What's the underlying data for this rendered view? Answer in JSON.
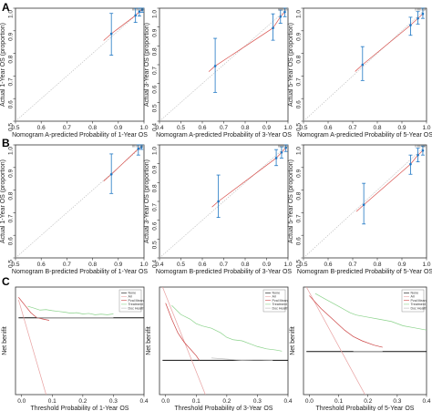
{
  "panel_labels": [
    "A",
    "B",
    "C"
  ],
  "chart_data": [
    {
      "panel": "A",
      "type": "scatter",
      "subtype": "calibration",
      "xlabel": "Nomogram A-predicted Probability of 1-Year OS",
      "ylabel": "Actual 1-Year OS (proportion)",
      "xlim": [
        0.5,
        1.0
      ],
      "ylim": [
        0.5,
        1.0
      ],
      "xticks": [
        "0.5",
        "0.6",
        "0.7",
        "0.8",
        "0.9",
        "1.0"
      ],
      "yticks": [
        "0.5",
        "0.6",
        "0.7",
        "0.8",
        "0.9",
        "1.0"
      ],
      "points": [
        {
          "x": 0.873,
          "y": 0.887,
          "lo": 0.792,
          "hi": 0.977
        },
        {
          "x": 0.967,
          "y": 0.968,
          "lo": 0.937,
          "hi": 0.999
        },
        {
          "x": 0.982,
          "y": 0.985,
          "lo": 0.965,
          "hi": 1.0
        },
        {
          "x": 0.993,
          "y": 0.993,
          "lo": 0.982,
          "hi": 1.0
        }
      ],
      "colors": {
        "points": "#1f77c4",
        "fit": "#d9534f",
        "ideal": "#bbbbbb"
      }
    },
    {
      "panel": "A",
      "type": "scatter",
      "subtype": "calibration",
      "xlabel": "Nomogram A-predicted Probability of 3-Year OS",
      "ylabel": "Actual 3-Year OS (proportion)",
      "xlim": [
        0.4,
        1.0
      ],
      "ylim": [
        0.4,
        1.0
      ],
      "xticks": [
        "0.4",
        "0.5",
        "0.6",
        "0.7",
        "0.8",
        "0.9",
        "1.0"
      ],
      "yticks": [
        "0.4",
        "0.5",
        "0.6",
        "0.7",
        "0.8",
        "0.9",
        "1.0"
      ],
      "points": [
        {
          "x": 0.66,
          "y": 0.693,
          "lo": 0.553,
          "hi": 0.84
        },
        {
          "x": 0.93,
          "y": 0.895,
          "lo": 0.83,
          "hi": 0.97
        },
        {
          "x": 0.965,
          "y": 0.955,
          "lo": 0.92,
          "hi": 0.99
        },
        {
          "x": 0.985,
          "y": 0.98,
          "lo": 0.955,
          "hi": 1.0
        }
      ],
      "colors": {
        "points": "#1f77c4",
        "fit": "#d9534f",
        "ideal": "#bbbbbb"
      }
    },
    {
      "panel": "A",
      "type": "scatter",
      "subtype": "calibration",
      "xlabel": "Nomogram A-predicted Probability of 5-Year OS",
      "ylabel": "Actual 5-Year OS (proportion)",
      "xlim": [
        0.5,
        1.0
      ],
      "ylim": [
        0.5,
        1.0
      ],
      "xticks": [
        "0.5",
        "0.6",
        "0.7",
        "0.8",
        "0.9",
        "1.0"
      ],
      "yticks": [
        "0.5",
        "0.6",
        "0.7",
        "0.8",
        "0.9",
        "1.0"
      ],
      "points": [
        {
          "x": 0.74,
          "y": 0.75,
          "lo": 0.68,
          "hi": 0.83
        },
        {
          "x": 0.935,
          "y": 0.925,
          "lo": 0.88,
          "hi": 0.96
        },
        {
          "x": 0.965,
          "y": 0.955,
          "lo": 0.93,
          "hi": 0.985
        },
        {
          "x": 0.985,
          "y": 0.975,
          "lo": 0.955,
          "hi": 1.0
        }
      ],
      "colors": {
        "points": "#1f77c4",
        "fit": "#d9534f",
        "ideal": "#bbbbbb"
      }
    },
    {
      "panel": "B",
      "type": "scatter",
      "subtype": "calibration",
      "xlabel": "Nomogram B-predicted Probability of 1-Year OS",
      "ylabel": "Actual 1-Year OS (proportion)",
      "xlim": [
        0.5,
        1.0
      ],
      "ylim": [
        0.5,
        1.0
      ],
      "xticks": [
        "0.5",
        "0.6",
        "0.7",
        "0.8",
        "0.9",
        "1.0"
      ],
      "yticks": [
        "0.5",
        "0.6",
        "0.7",
        "0.8",
        "0.9",
        "1.0"
      ],
      "points": [
        {
          "x": 0.873,
          "y": 0.87,
          "lo": 0.785,
          "hi": 0.96
        },
        {
          "x": 0.978,
          "y": 0.983,
          "lo": 0.955,
          "hi": 1.0
        },
        {
          "x": 0.99,
          "y": 0.99,
          "lo": 0.98,
          "hi": 1.0
        }
      ],
      "colors": {
        "points": "#1f77c4",
        "fit": "#d9534f",
        "ideal": "#bbbbbb"
      }
    },
    {
      "panel": "B",
      "type": "scatter",
      "subtype": "calibration",
      "xlabel": "Nomogram B-predicted Probability of 3-Year OS",
      "ylabel": "Actual 3-Year OS (proportion)",
      "xlim": [
        0.4,
        1.0
      ],
      "ylim": [
        0.4,
        1.0
      ],
      "xticks": [
        "0.4",
        "0.5",
        "0.6",
        "0.7",
        "0.8",
        "0.9",
        "1.0"
      ],
      "yticks": [
        "0.4",
        "0.5",
        "0.6",
        "0.7",
        "0.8",
        "0.9",
        "1.0"
      ],
      "points": [
        {
          "x": 0.675,
          "y": 0.7,
          "lo": 0.615,
          "hi": 0.84
        },
        {
          "x": 0.945,
          "y": 0.93,
          "lo": 0.89,
          "hi": 0.975
        },
        {
          "x": 0.97,
          "y": 0.96,
          "lo": 0.93,
          "hi": 0.99
        },
        {
          "x": 0.99,
          "y": 0.985,
          "lo": 0.965,
          "hi": 1.0
        }
      ],
      "colors": {
        "points": "#1f77c4",
        "fit": "#d9534f",
        "ideal": "#bbbbbb"
      }
    },
    {
      "panel": "B",
      "type": "scatter",
      "subtype": "calibration",
      "xlabel": "Nomogram B-predicted Probability of 5-Year OS",
      "ylabel": "Actual 5-Year OS (proportion)",
      "xlim": [
        0.5,
        1.0
      ],
      "ylim": [
        0.5,
        1.0
      ],
      "xticks": [
        "0.5",
        "0.6",
        "0.7",
        "0.8",
        "0.9",
        "1.0"
      ],
      "yticks": [
        "0.5",
        "0.6",
        "0.7",
        "0.8",
        "0.9",
        "1.0"
      ],
      "points": [
        {
          "x": 0.745,
          "y": 0.735,
          "lo": 0.65,
          "hi": 0.83
        },
        {
          "x": 0.935,
          "y": 0.915,
          "lo": 0.87,
          "hi": 0.955
        },
        {
          "x": 0.965,
          "y": 0.955,
          "lo": 0.925,
          "hi": 0.985
        },
        {
          "x": 0.985,
          "y": 0.975,
          "lo": 0.955,
          "hi": 0.995
        }
      ],
      "colors": {
        "points": "#1f77c4",
        "fit": "#d9534f",
        "ideal": "#bbbbbb"
      }
    },
    {
      "panel": "C",
      "type": "line",
      "subtype": "decision-curve",
      "xlabel": "Threshold Probability of 1-Year OS",
      "ylabel": "Net benifit",
      "xlim": [
        -0.02,
        0.4
      ],
      "ylim": [
        -0.3,
        0.12
      ],
      "xticks": [
        "0.0",
        "0.1",
        "0.2",
        "0.3",
        "0.4"
      ],
      "legend": [
        "None",
        "All",
        "Pval Mean",
        "Treatment",
        "Doc Health"
      ],
      "series": [
        {
          "name": "None",
          "color": "#111111",
          "x": [
            -0.01,
            0.4
          ],
          "y": [
            0.0,
            0.0
          ]
        },
        {
          "name": "All",
          "color": "#e8a0a0",
          "x": [
            -0.01,
            0.08
          ],
          "y": [
            0.07,
            -0.3
          ]
        },
        {
          "name": "Pval Mean",
          "color": "#cc4444",
          "x": [
            -0.01,
            0.01,
            0.03,
            0.05,
            0.07,
            0.09
          ],
          "y": [
            0.08,
            0.05,
            0.02,
            0.0,
            -0.005,
            -0.01
          ]
        },
        {
          "name": "Treatment",
          "color": "#8ad28a",
          "x": [
            0.02,
            0.04,
            0.06,
            0.08,
            0.1,
            0.12,
            0.14,
            0.16,
            0.18,
            0.2,
            0.22,
            0.24,
            0.26,
            0.28,
            0.3
          ],
          "y": [
            0.045,
            0.038,
            0.03,
            0.032,
            0.028,
            0.025,
            0.022,
            0.018,
            0.02,
            0.015,
            0.017,
            0.012,
            0.014,
            0.012,
            0.015
          ]
        },
        {
          "name": "Doc Health",
          "color": "#b8b8b8",
          "x": [
            0.05,
            0.1,
            0.15,
            0.2,
            0.25,
            0.3
          ],
          "y": [
            0.0,
            0.0,
            0.0,
            0.0,
            0.0,
            0.0
          ]
        }
      ]
    },
    {
      "panel": "C",
      "type": "line",
      "subtype": "decision-curve",
      "xlabel": "Threshold Probability of 3-Year OS",
      "ylabel": "Net benifit",
      "xlim": [
        -0.02,
        0.4
      ],
      "ylim": [
        -0.15,
        0.32
      ],
      "xticks": [
        "0.0",
        "0.1",
        "0.2",
        "0.3",
        "0.4"
      ],
      "legend": [
        "None",
        "All",
        "Pval Mean",
        "Treatment",
        "Doc Health"
      ],
      "series": [
        {
          "name": "None",
          "color": "#111111",
          "x": [
            -0.01,
            0.4
          ],
          "y": [
            0.0,
            0.0
          ]
        },
        {
          "name": "All",
          "color": "#e8a0a0",
          "x": [
            -0.01,
            0.13
          ],
          "y": [
            0.32,
            -0.15
          ]
        },
        {
          "name": "Pval Mean",
          "color": "#cc4444",
          "x": [
            0.0,
            0.02,
            0.04,
            0.06,
            0.08,
            0.1,
            0.11
          ],
          "y": [
            0.25,
            0.18,
            0.12,
            0.08,
            0.05,
            0.02,
            0.0
          ]
        },
        {
          "name": "Treatment",
          "color": "#8ad28a",
          "x": [
            0.02,
            0.05,
            0.08,
            0.1,
            0.12,
            0.15,
            0.18,
            0.2,
            0.22,
            0.25,
            0.28,
            0.3,
            0.33,
            0.36,
            0.38
          ],
          "y": [
            0.24,
            0.2,
            0.18,
            0.16,
            0.15,
            0.14,
            0.12,
            0.1,
            0.09,
            0.085,
            0.07,
            0.06,
            0.05,
            0.045,
            0.04
          ]
        },
        {
          "name": "Doc Health",
          "color": "#b8b8b8",
          "x": [
            0.15,
            0.2,
            0.25,
            0.3,
            0.35
          ],
          "y": [
            0.01,
            0.005,
            0.0,
            0.002,
            0.0
          ]
        }
      ]
    },
    {
      "panel": "C",
      "type": "line",
      "subtype": "decision-curve",
      "xlabel": "Threshold Probability of 5-Year OS",
      "ylabel": "Net benifit",
      "xlim": [
        -0.02,
        0.4
      ],
      "ylim": [
        -0.2,
        0.3
      ],
      "xticks": [
        "0.0",
        "0.1",
        "0.2",
        "0.3",
        "0.4"
      ],
      "legend": [
        "None",
        "All",
        "Pval Mean",
        "Treatment",
        "Doc Health"
      ],
      "series": [
        {
          "name": "None",
          "color": "#111111",
          "x": [
            -0.01,
            0.4
          ],
          "y": [
            0.0,
            0.0
          ]
        },
        {
          "name": "All",
          "color": "#e8a0a0",
          "x": [
            -0.01,
            0.19
          ],
          "y": [
            0.3,
            -0.2
          ]
        },
        {
          "name": "Pval Mean",
          "color": "#cc4444",
          "x": [
            0.0,
            0.04,
            0.08,
            0.12,
            0.15,
            0.18,
            0.22,
            0.25
          ],
          "y": [
            0.26,
            0.2,
            0.15,
            0.1,
            0.07,
            0.05,
            0.03,
            0.02
          ]
        },
        {
          "name": "Treatment",
          "color": "#8ad28a",
          "x": [
            0.02,
            0.06,
            0.1,
            0.14,
            0.16,
            0.2,
            0.24,
            0.28,
            0.32,
            0.36,
            0.4
          ],
          "y": [
            0.27,
            0.24,
            0.21,
            0.18,
            0.17,
            0.16,
            0.15,
            0.14,
            0.12,
            0.11,
            0.1
          ]
        },
        {
          "name": "Doc Health",
          "color": "#b8b8b8",
          "x": [
            0.15,
            0.2,
            0.25
          ],
          "y": [
            0.0,
            0.0,
            0.0
          ]
        }
      ]
    }
  ]
}
